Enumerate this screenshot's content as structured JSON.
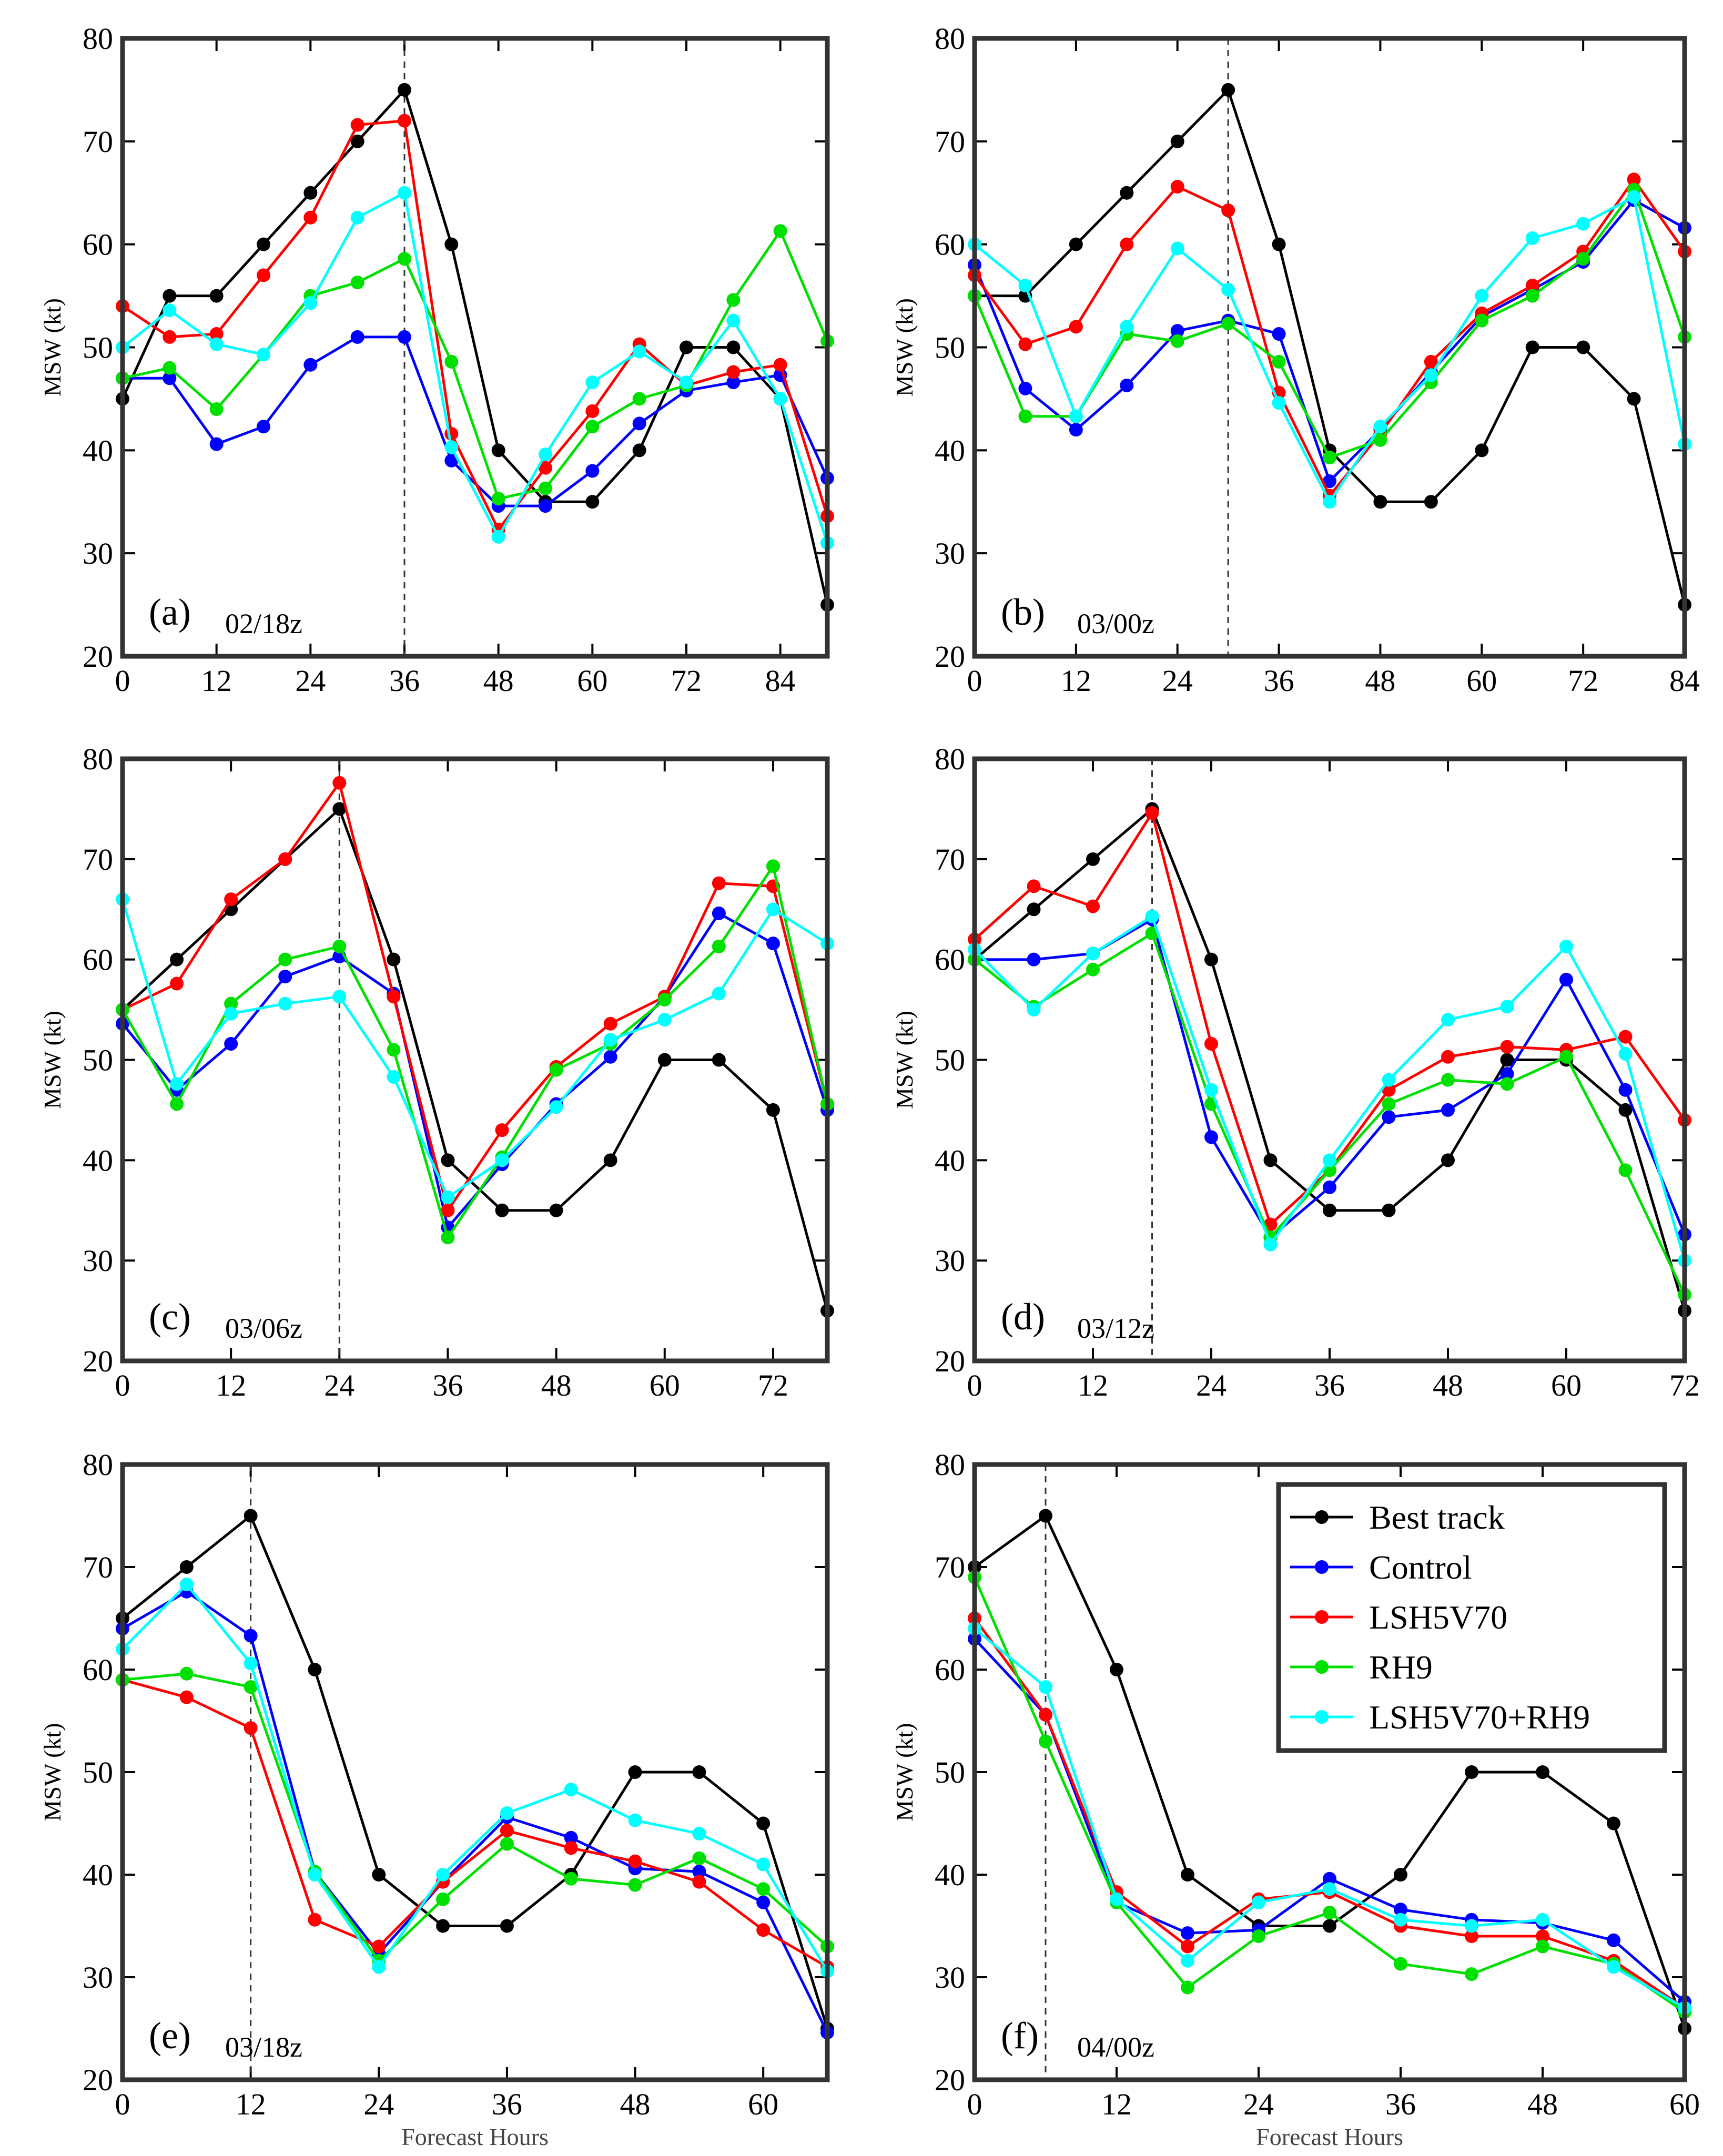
{
  "figure": {
    "ylabel": "MSW (kt)",
    "xlabel": "Forecast Hours"
  },
  "legend": [
    {
      "key": "best",
      "label": "Best track"
    },
    {
      "key": "control",
      "label": "Control"
    },
    {
      "key": "lsh",
      "label": "LSH5V70"
    },
    {
      "key": "rh9",
      "label": "RH9"
    },
    {
      "key": "combo",
      "label": "LSH5V70+RH9"
    }
  ],
  "colors": {
    "best": "#000000",
    "control": "#0000ff",
    "lsh": "#ff0000",
    "rh9": "#00e000",
    "combo": "#00ffff"
  },
  "chart_data": [
    {
      "type": "line",
      "letter": "(a)",
      "time": "02/18z",
      "xlim": [
        0,
        90
      ],
      "xticks": [
        0,
        12,
        24,
        36,
        48,
        60,
        72,
        84
      ],
      "ylim": [
        20,
        80
      ],
      "yticks": [
        20,
        30,
        40,
        50,
        60,
        70,
        80
      ],
      "vline": 36,
      "x": [
        0,
        6,
        12,
        18,
        24,
        30,
        36,
        42,
        48,
        54,
        60,
        66,
        72,
        78,
        84,
        90
      ],
      "series": [
        {
          "key": "best",
          "values": [
            45,
            55,
            55,
            60,
            65,
            70,
            75,
            60,
            40,
            35,
            35,
            40,
            50,
            50,
            45,
            25
          ]
        },
        {
          "key": "control",
          "values": [
            47,
            47,
            40.6,
            42.3,
            48.3,
            51,
            51,
            39,
            34.6,
            34.6,
            38,
            42.6,
            45.8,
            46.6,
            47.3,
            37.3
          ]
        },
        {
          "key": "lsh",
          "values": [
            54,
            51,
            51.3,
            57,
            62.6,
            71.6,
            72,
            41.6,
            32.3,
            38.3,
            43.8,
            50.3,
            46.3,
            47.6,
            48.3,
            33.6
          ]
        },
        {
          "key": "rh9",
          "values": [
            47,
            48,
            44,
            49.3,
            55,
            56.3,
            58.6,
            48.6,
            35.3,
            36.3,
            42.3,
            45,
            46.3,
            54.6,
            61.3,
            50.6
          ]
        },
        {
          "key": "combo",
          "values": [
            50,
            53.6,
            50.3,
            49.3,
            54.3,
            62.6,
            65,
            40.3,
            31.6,
            39.6,
            46.6,
            49.6,
            46.6,
            52.6,
            45,
            31
          ]
        }
      ]
    },
    {
      "type": "line",
      "letter": "(b)",
      "time": "03/00z",
      "xlim": [
        0,
        84
      ],
      "xticks": [
        0,
        12,
        24,
        36,
        48,
        60,
        72,
        84
      ],
      "ylim": [
        20,
        80
      ],
      "yticks": [
        20,
        30,
        40,
        50,
        60,
        70,
        80
      ],
      "vline": 30,
      "x": [
        0,
        6,
        12,
        18,
        24,
        30,
        36,
        42,
        48,
        54,
        60,
        66,
        72,
        78,
        84
      ],
      "series": [
        {
          "key": "best",
          "values": [
            55,
            55,
            60,
            65,
            70,
            75,
            60,
            40,
            35,
            35,
            40,
            50,
            50,
            45,
            25
          ]
        },
        {
          "key": "control",
          "values": [
            58,
            46,
            42,
            46.3,
            51.6,
            52.6,
            51.3,
            37,
            42,
            47.6,
            53,
            55.6,
            58.3,
            64.3,
            61.6
          ]
        },
        {
          "key": "lsh",
          "values": [
            57,
            50.3,
            52,
            60,
            65.6,
            63.3,
            45.6,
            35.6,
            41.6,
            48.6,
            53.3,
            56,
            59.3,
            66.3,
            59.3
          ]
        },
        {
          "key": "rh9",
          "values": [
            55,
            43.3,
            43.3,
            51.3,
            50.6,
            52.3,
            48.6,
            39.3,
            41,
            46.6,
            52.6,
            55,
            58.6,
            65.3,
            51
          ]
        },
        {
          "key": "combo",
          "values": [
            60,
            56,
            43.3,
            52,
            59.6,
            55.6,
            44.6,
            35,
            42.3,
            47.3,
            55,
            60.6,
            62,
            64.6,
            40.6
          ]
        }
      ]
    },
    {
      "type": "line",
      "letter": "(c)",
      "time": "03/06z",
      "xlim": [
        0,
        78
      ],
      "xticks": [
        0,
        12,
        24,
        36,
        48,
        60,
        72
      ],
      "ylim": [
        20,
        80
      ],
      "yticks": [
        20,
        30,
        40,
        50,
        60,
        70,
        80
      ],
      "vline": 24,
      "x": [
        0,
        6,
        12,
        18,
        24,
        30,
        36,
        42,
        48,
        54,
        60,
        66,
        72,
        78
      ],
      "series": [
        {
          "key": "best",
          "values": [
            55,
            60,
            65,
            70,
            75,
            60,
            40,
            35,
            35,
            40,
            50,
            50,
            45,
            25
          ]
        },
        {
          "key": "control",
          "values": [
            53.6,
            47,
            51.6,
            58.3,
            60.3,
            56.6,
            33.3,
            39.6,
            45.6,
            50.3,
            56.3,
            64.6,
            61.6,
            45
          ]
        },
        {
          "key": "lsh",
          "values": [
            55,
            57.6,
            66,
            70,
            77.6,
            56.3,
            35,
            43,
            49.3,
            53.6,
            56.3,
            67.6,
            67.3,
            45.6
          ]
        },
        {
          "key": "rh9",
          "values": [
            55,
            45.6,
            55.6,
            60,
            61.3,
            51,
            32.3,
            40.3,
            49,
            51.6,
            56,
            61.3,
            69.3,
            45.6
          ]
        },
        {
          "key": "combo",
          "values": [
            66,
            47.6,
            54.6,
            55.6,
            56.3,
            48.3,
            36.3,
            40,
            45.3,
            52,
            54,
            56.6,
            65,
            61.6
          ]
        }
      ]
    },
    {
      "type": "line",
      "letter": "(d)",
      "time": "03/12z",
      "xlim": [
        0,
        72
      ],
      "xticks": [
        0,
        12,
        24,
        36,
        48,
        60,
        72
      ],
      "ylim": [
        20,
        80
      ],
      "yticks": [
        20,
        30,
        40,
        50,
        60,
        70,
        80
      ],
      "vline": 18,
      "x": [
        0,
        6,
        12,
        18,
        24,
        30,
        36,
        42,
        48,
        54,
        60,
        66,
        72
      ],
      "series": [
        {
          "key": "best",
          "values": [
            60,
            65,
            70,
            75,
            60,
            40,
            35,
            35,
            40,
            50,
            50,
            45,
            25
          ]
        },
        {
          "key": "control",
          "values": [
            60,
            60,
            60.6,
            64,
            42.3,
            32.3,
            37.3,
            44.3,
            45,
            48.6,
            58,
            47,
            32.6
          ]
        },
        {
          "key": "lsh",
          "values": [
            62,
            67.3,
            65.3,
            74.6,
            51.6,
            33.6,
            39,
            47,
            50.3,
            51.3,
            51,
            52.3,
            44
          ]
        },
        {
          "key": "rh9",
          "values": [
            60,
            55.3,
            59,
            62.6,
            45.6,
            32.3,
            39,
            45.6,
            48,
            47.6,
            50.3,
            39,
            26.6
          ]
        },
        {
          "key": "combo",
          "values": [
            61,
            55,
            60.6,
            64.3,
            47,
            31.6,
            40,
            48,
            54,
            55.3,
            61.3,
            50.6,
            30
          ]
        }
      ]
    },
    {
      "type": "line",
      "letter": "(e)",
      "time": "03/18z",
      "xlim": [
        0,
        66
      ],
      "xticks": [
        0,
        12,
        24,
        36,
        48,
        60
      ],
      "ylim": [
        20,
        80
      ],
      "yticks": [
        20,
        30,
        40,
        50,
        60,
        70,
        80
      ],
      "vline": 12,
      "x": [
        0,
        6,
        12,
        18,
        24,
        30,
        36,
        42,
        48,
        54,
        60,
        66
      ],
      "series": [
        {
          "key": "best",
          "values": [
            65,
            70,
            75,
            60,
            40,
            35,
            35,
            40,
            50,
            50,
            45,
            25
          ]
        },
        {
          "key": "control",
          "values": [
            64,
            67.6,
            63.3,
            40.3,
            32.3,
            39.3,
            45.6,
            43.6,
            40.6,
            40.3,
            37.3,
            24.6
          ]
        },
        {
          "key": "lsh",
          "values": [
            59,
            57.3,
            54.3,
            35.6,
            33,
            39.3,
            44.3,
            42.6,
            41.3,
            39.3,
            34.6,
            31
          ]
        },
        {
          "key": "rh9",
          "values": [
            59,
            59.6,
            58.3,
            40.3,
            31.6,
            37.6,
            43,
            39.6,
            39,
            41.6,
            38.6,
            33
          ]
        },
        {
          "key": "combo",
          "values": [
            62,
            68.3,
            60.6,
            40,
            31,
            40,
            46,
            48.3,
            45.3,
            44,
            41,
            30.6
          ]
        }
      ]
    },
    {
      "type": "line",
      "letter": "(f)",
      "time": "04/00z",
      "xlim": [
        0,
        60
      ],
      "xticks": [
        0,
        12,
        24,
        36,
        48,
        60
      ],
      "ylim": [
        20,
        80
      ],
      "yticks": [
        20,
        30,
        40,
        50,
        60,
        70,
        80
      ],
      "vline": 6,
      "legend": true,
      "x": [
        0,
        6,
        12,
        18,
        24,
        30,
        36,
        42,
        48,
        54,
        60
      ],
      "series": [
        {
          "key": "best",
          "values": [
            70,
            75,
            60,
            40,
            35,
            35,
            40,
            50,
            50,
            45,
            25
          ]
        },
        {
          "key": "control",
          "values": [
            63,
            55.6,
            37.3,
            34.3,
            34.6,
            39.6,
            36.6,
            35.6,
            35.3,
            33.6,
            27.6
          ]
        },
        {
          "key": "lsh",
          "values": [
            65,
            55.6,
            38.3,
            33,
            37.6,
            38.3,
            35,
            34,
            34,
            31.6,
            27
          ]
        },
        {
          "key": "rh9",
          "values": [
            69,
            53,
            37.3,
            29,
            34,
            36.3,
            31.3,
            30.3,
            33,
            31.3,
            26.6
          ]
        },
        {
          "key": "combo",
          "values": [
            64,
            58.3,
            37.6,
            31.6,
            37.3,
            38.6,
            35.6,
            35,
            35.6,
            31,
            27
          ]
        }
      ]
    }
  ]
}
